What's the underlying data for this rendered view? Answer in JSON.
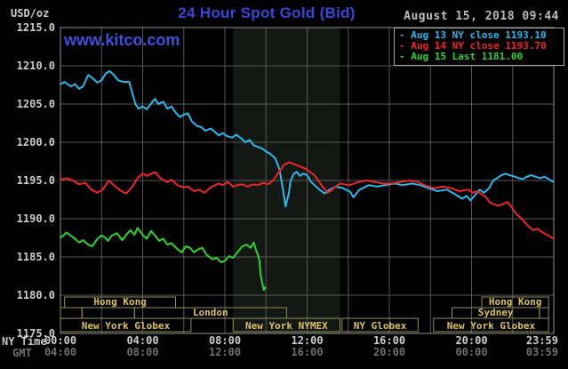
{
  "chart_data": {
    "type": "line",
    "title": "24 Hour Spot Gold (Bid)",
    "timestamp": "August 15, 2018 09:44",
    "watermark": "www.kitco.com",
    "ylabel": "USD/oz",
    "ylim": [
      1175,
      1215
    ],
    "ytick_values": [
      1215.0,
      1210.0,
      1205.0,
      1200.0,
      1195.0,
      1190.0,
      1185.0,
      1180.0,
      1175.0
    ],
    "x_axis": {
      "ny_caption": "NY Time",
      "gmt_caption": "GMT",
      "tick_hours": [
        0,
        4,
        8,
        12,
        16,
        20,
        23.983
      ],
      "ny_ticks": [
        "00:00",
        "04:00",
        "08:00",
        "12:00",
        "16:00",
        "20:00",
        "23:59"
      ],
      "gmt_ticks": [
        "04:00",
        "08:00",
        "12:00",
        "16:00",
        "20:00",
        "00:00",
        "03:59"
      ]
    },
    "grid_hours_step": 2,
    "nymex_session_band_hours": [
      8.4,
      13.6
    ],
    "legend": [
      {
        "text": "- Aug 13 NY close 1193.10"
      },
      {
        "text": "- Aug 14 NY close 1193.70"
      },
      {
        "text": "- Aug 15 Last 1181.00"
      }
    ],
    "series": [
      {
        "name": "Aug 13",
        "color": "#2db7ea",
        "points": [
          [
            0,
            1207.6
          ],
          [
            0.2,
            1207.9
          ],
          [
            0.5,
            1207.3
          ],
          [
            0.7,
            1207.6
          ],
          [
            0.9,
            1207.0
          ],
          [
            1.1,
            1207.3
          ],
          [
            1.35,
            1208.8
          ],
          [
            1.55,
            1208.4
          ],
          [
            1.8,
            1207.8
          ],
          [
            2.0,
            1208.1
          ],
          [
            2.2,
            1209.0
          ],
          [
            2.4,
            1209.3
          ],
          [
            2.6,
            1208.8
          ],
          [
            2.8,
            1208.1
          ],
          [
            3.05,
            1207.9
          ],
          [
            3.35,
            1207.9
          ],
          [
            3.5,
            1206.4
          ],
          [
            3.65,
            1205.0
          ],
          [
            3.8,
            1204.4
          ],
          [
            4.0,
            1204.7
          ],
          [
            4.2,
            1204.3
          ],
          [
            4.45,
            1205.2
          ],
          [
            4.6,
            1205.7
          ],
          [
            4.75,
            1205.0
          ],
          [
            5.0,
            1205.3
          ],
          [
            5.2,
            1204.4
          ],
          [
            5.4,
            1204.7
          ],
          [
            5.6,
            1203.9
          ],
          [
            5.8,
            1203.3
          ],
          [
            6.0,
            1203.6
          ],
          [
            6.2,
            1203.8
          ],
          [
            6.4,
            1202.7
          ],
          [
            6.65,
            1202.1
          ],
          [
            6.85,
            1202.0
          ],
          [
            7.05,
            1201.5
          ],
          [
            7.3,
            1201.8
          ],
          [
            7.5,
            1201.4
          ],
          [
            7.7,
            1200.9
          ],
          [
            7.9,
            1201.2
          ],
          [
            8.1,
            1200.8
          ],
          [
            8.35,
            1200.6
          ],
          [
            8.55,
            1201.0
          ],
          [
            8.75,
            1200.6
          ],
          [
            9.0,
            1200.0
          ],
          [
            9.2,
            1200.3
          ],
          [
            9.4,
            1199.6
          ],
          [
            9.6,
            1199.4
          ],
          [
            9.8,
            1199.2
          ],
          [
            10.0,
            1198.8
          ],
          [
            10.2,
            1198.5
          ],
          [
            10.45,
            1197.9
          ],
          [
            10.65,
            1196.5
          ],
          [
            10.8,
            1194.2
          ],
          [
            10.95,
            1191.6
          ],
          [
            11.1,
            1193.2
          ],
          [
            11.2,
            1195.0
          ],
          [
            11.35,
            1195.9
          ],
          [
            11.5,
            1196.1
          ],
          [
            11.65,
            1195.6
          ],
          [
            11.8,
            1195.9
          ],
          [
            12.0,
            1195.7
          ],
          [
            12.2,
            1194.8
          ],
          [
            12.6,
            1193.8
          ],
          [
            12.85,
            1193.3
          ],
          [
            13.1,
            1193.8
          ],
          [
            13.4,
            1194.2
          ],
          [
            13.75,
            1194.0
          ],
          [
            14.1,
            1193.5
          ],
          [
            14.25,
            1192.8
          ],
          [
            14.55,
            1193.8
          ],
          [
            15.0,
            1194.4
          ],
          [
            15.4,
            1194.2
          ],
          [
            15.8,
            1194.4
          ],
          [
            16.25,
            1194.6
          ],
          [
            16.65,
            1194.4
          ],
          [
            17.1,
            1194.6
          ],
          [
            17.5,
            1194.4
          ],
          [
            17.9,
            1194.0
          ],
          [
            18.35,
            1193.6
          ],
          [
            18.8,
            1193.8
          ],
          [
            19.2,
            1193.2
          ],
          [
            19.55,
            1192.6
          ],
          [
            19.75,
            1193.0
          ],
          [
            19.95,
            1192.4
          ],
          [
            20.2,
            1193.2
          ],
          [
            20.4,
            1193.8
          ],
          [
            20.6,
            1193.4
          ],
          [
            20.85,
            1194.0
          ],
          [
            21.05,
            1195.0
          ],
          [
            21.25,
            1195.3
          ],
          [
            21.45,
            1195.7
          ],
          [
            21.65,
            1195.9
          ],
          [
            21.85,
            1195.7
          ],
          [
            22.1,
            1195.5
          ],
          [
            22.3,
            1195.3
          ],
          [
            22.5,
            1195.2
          ],
          [
            22.7,
            1195.5
          ],
          [
            22.9,
            1195.7
          ],
          [
            23.1,
            1195.5
          ],
          [
            23.35,
            1195.3
          ],
          [
            23.55,
            1195.5
          ],
          [
            23.75,
            1195.2
          ],
          [
            23.98,
            1194.8
          ]
        ]
      },
      {
        "name": "Aug 14",
        "color": "#f02525",
        "points": [
          [
            0,
            1195.1
          ],
          [
            0.3,
            1195.3
          ],
          [
            0.6,
            1195.0
          ],
          [
            0.9,
            1194.5
          ],
          [
            1.2,
            1194.7
          ],
          [
            1.5,
            1193.8
          ],
          [
            1.8,
            1193.4
          ],
          [
            2.05,
            1193.8
          ],
          [
            2.35,
            1195.0
          ],
          [
            2.6,
            1194.4
          ],
          [
            2.9,
            1193.7
          ],
          [
            3.2,
            1193.3
          ],
          [
            3.5,
            1194.2
          ],
          [
            3.75,
            1195.3
          ],
          [
            4.0,
            1195.9
          ],
          [
            4.2,
            1195.6
          ],
          [
            4.6,
            1196.1
          ],
          [
            4.85,
            1195.3
          ],
          [
            5.2,
            1194.8
          ],
          [
            5.4,
            1195.1
          ],
          [
            5.7,
            1194.4
          ],
          [
            5.95,
            1194.1
          ],
          [
            6.2,
            1194.2
          ],
          [
            6.5,
            1193.6
          ],
          [
            6.75,
            1193.8
          ],
          [
            7.0,
            1193.4
          ],
          [
            7.3,
            1194.1
          ],
          [
            7.7,
            1194.6
          ],
          [
            7.9,
            1194.4
          ],
          [
            8.15,
            1194.8
          ],
          [
            8.4,
            1194.2
          ],
          [
            8.6,
            1194.4
          ],
          [
            8.85,
            1194.5
          ],
          [
            9.1,
            1194.2
          ],
          [
            9.35,
            1194.5
          ],
          [
            9.6,
            1194.4
          ],
          [
            9.85,
            1194.7
          ],
          [
            10.1,
            1194.5
          ],
          [
            10.35,
            1195.0
          ],
          [
            10.6,
            1196.0
          ],
          [
            10.9,
            1197.1
          ],
          [
            11.15,
            1197.4
          ],
          [
            11.5,
            1197.0
          ],
          [
            11.95,
            1196.5
          ],
          [
            12.35,
            1195.7
          ],
          [
            12.7,
            1194.4
          ],
          [
            13.0,
            1193.4
          ],
          [
            13.3,
            1194.0
          ],
          [
            13.6,
            1194.6
          ],
          [
            14.05,
            1194.4
          ],
          [
            14.5,
            1194.8
          ],
          [
            14.9,
            1195.0
          ],
          [
            15.3,
            1194.8
          ],
          [
            15.7,
            1194.6
          ],
          [
            16.1,
            1194.6
          ],
          [
            16.5,
            1194.8
          ],
          [
            17.0,
            1195.0
          ],
          [
            17.4,
            1194.8
          ],
          [
            17.7,
            1194.4
          ],
          [
            18.15,
            1194.0
          ],
          [
            18.6,
            1194.2
          ],
          [
            19.0,
            1194.0
          ],
          [
            19.4,
            1193.6
          ],
          [
            19.85,
            1193.8
          ],
          [
            20.05,
            1193.4
          ],
          [
            20.25,
            1193.6
          ],
          [
            20.5,
            1193.2
          ],
          [
            20.7,
            1192.8
          ],
          [
            20.9,
            1192.1
          ],
          [
            21.1,
            1191.9
          ],
          [
            21.3,
            1191.7
          ],
          [
            21.5,
            1191.9
          ],
          [
            21.75,
            1192.2
          ],
          [
            21.95,
            1191.5
          ],
          [
            22.15,
            1190.7
          ],
          [
            22.4,
            1190.1
          ],
          [
            22.6,
            1189.5
          ],
          [
            22.8,
            1188.9
          ],
          [
            23.0,
            1188.5
          ],
          [
            23.2,
            1188.7
          ],
          [
            23.4,
            1188.3
          ],
          [
            23.6,
            1188.0
          ],
          [
            23.8,
            1187.7
          ],
          [
            23.98,
            1187.4
          ]
        ]
      },
      {
        "name": "Aug 15",
        "color": "#2fd32f",
        "points": [
          [
            0,
            1187.5
          ],
          [
            0.3,
            1188.2
          ],
          [
            0.55,
            1187.7
          ],
          [
            0.7,
            1187.4
          ],
          [
            0.9,
            1186.9
          ],
          [
            1.1,
            1187.2
          ],
          [
            1.35,
            1186.6
          ],
          [
            1.55,
            1186.4
          ],
          [
            1.8,
            1187.4
          ],
          [
            2.0,
            1187.8
          ],
          [
            2.15,
            1187.6
          ],
          [
            2.3,
            1187.1
          ],
          [
            2.5,
            1187.8
          ],
          [
            2.75,
            1188.1
          ],
          [
            3.0,
            1187.2
          ],
          [
            3.2,
            1187.9
          ],
          [
            3.4,
            1188.5
          ],
          [
            3.6,
            1187.9
          ],
          [
            3.75,
            1188.8
          ],
          [
            4.0,
            1187.9
          ],
          [
            4.2,
            1187.4
          ],
          [
            4.4,
            1188.4
          ],
          [
            4.6,
            1187.8
          ],
          [
            4.8,
            1187.1
          ],
          [
            5.0,
            1187.4
          ],
          [
            5.2,
            1186.6
          ],
          [
            5.4,
            1186.8
          ],
          [
            5.7,
            1186.0
          ],
          [
            5.9,
            1185.6
          ],
          [
            6.1,
            1186.4
          ],
          [
            6.3,
            1186.2
          ],
          [
            6.5,
            1185.6
          ],
          [
            6.7,
            1186.0
          ],
          [
            6.9,
            1186.2
          ],
          [
            7.1,
            1185.3
          ],
          [
            7.4,
            1184.7
          ],
          [
            7.6,
            1184.9
          ],
          [
            7.8,
            1184.3
          ],
          [
            8.0,
            1184.5
          ],
          [
            8.2,
            1185.1
          ],
          [
            8.4,
            1184.9
          ],
          [
            8.6,
            1185.6
          ],
          [
            8.85,
            1186.4
          ],
          [
            9.05,
            1186.6
          ],
          [
            9.25,
            1186.2
          ],
          [
            9.4,
            1186.9
          ],
          [
            9.5,
            1186.0
          ],
          [
            9.6,
            1185.3
          ],
          [
            9.68,
            1184.5
          ],
          [
            9.73,
            1182.9
          ],
          [
            9.78,
            1182.0
          ],
          [
            9.85,
            1181.2
          ],
          [
            9.9,
            1180.7
          ],
          [
            9.95,
            1181.0
          ]
        ]
      }
    ],
    "sessions": {
      "rows": [
        [
          {
            "label": "Hong Kong",
            "t1": 0.2,
            "t2": 5.6
          },
          {
            "label": "Hong Kong",
            "t1": 20.5,
            "t2": 23.75
          }
        ],
        [
          {
            "label": "",
            "t1": 0,
            "t2": 1.05
          },
          {
            "label": "",
            "t1": 1.05,
            "t2": 3.6
          },
          {
            "label": "London",
            "t1": 3.6,
            "t2": 11.0
          },
          {
            "label": "Sydney",
            "t1": 19.05,
            "t2": 23.3
          },
          {
            "label": "",
            "t1": 23.3,
            "t2": 23.75
          }
        ],
        [
          {
            "label": "New York Globex",
            "t1": 0,
            "t2": 6.35
          },
          {
            "label": "New York NYMEX",
            "t1": 8.4,
            "t2": 13.6
          },
          {
            "label": "NY Globex",
            "t1": 13.7,
            "t2": 17.4
          },
          {
            "label": "New York Globex",
            "t1": 18.15,
            "t2": 23.75
          }
        ]
      ]
    },
    "colors": {
      "grid": "#585858",
      "border": "#909090",
      "band": "#141814",
      "session_box": "#8f8f55",
      "session_text": "#d9c25a",
      "tick_text": "#cccccc",
      "tick_dim": "#707070"
    }
  }
}
